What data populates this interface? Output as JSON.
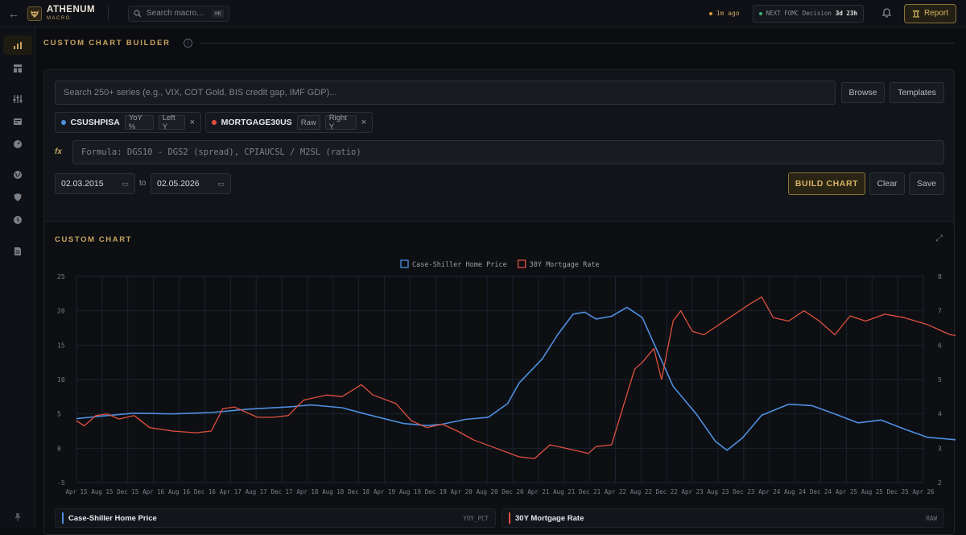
{
  "topbar": {
    "back": "←",
    "logo_name": "ATHENUM",
    "logo_sub": "MACRO",
    "search_placeholder": "Search macro...",
    "search_shortcut": "⌘K",
    "updated": "1m ago",
    "fomc_label": "NEXT FOMC Decision",
    "fomc_countdown": "3d 23h",
    "report_label": "Report"
  },
  "sidebar": {
    "items": [
      "chart-bar-icon",
      "layout-icon",
      "sliders-icon",
      "news-icon",
      "gauge-icon",
      "globe-icon",
      "shield-icon",
      "clock-icon",
      "document-icon",
      "pin-icon"
    ]
  },
  "builder": {
    "section_title": "CUSTOM CHART BUILDER",
    "info": "i",
    "search_placeholder": "Search 250+ series (e.g., VIX, COT Gold, BIS credit gap, IMF GDP)...",
    "browse_label": "Browse",
    "templates_label": "Templates",
    "chips": [
      {
        "name": "CSUSHPISA",
        "transform": "YoY %",
        "axis": "Left Y",
        "color": "#4f8fe0"
      },
      {
        "name": "MORTGAGE30US",
        "transform": "Raw",
        "axis": "Right Y",
        "color": "#e0503f"
      }
    ],
    "fx_label": "fx",
    "formula_placeholder": "Formula: DGS10 - DGS2 (spread), CPIAUCSL / M2SL (ratio)",
    "date_from": "02.03.2015",
    "date_to": "02.05.2026",
    "to_label": "to",
    "build_label": "BUILD CHART",
    "clear_label": "Clear",
    "save_label": "Save"
  },
  "chart_card": {
    "title": "CUSTOM CHART",
    "footer": [
      {
        "name": "Case-Shiller Home Price",
        "tag": "YOY_PCT",
        "color": "#4f8fe0"
      },
      {
        "name": "30Y Mortgage Rate",
        "tag": "RAW",
        "color": "#e0503f"
      }
    ]
  },
  "chart_data": {
    "type": "line",
    "legend_position": "top-center",
    "grid": true,
    "x_ticks": [
      "Apr 15",
      "Aug 15",
      "Dec 15",
      "Apr 16",
      "Aug 16",
      "Dec 16",
      "Apr 17",
      "Aug 17",
      "Dec 17",
      "Apr 18",
      "Aug 18",
      "Dec 18",
      "Apr 19",
      "Aug 19",
      "Dec 19",
      "Apr 20",
      "Aug 20",
      "Dec 20",
      "Apr 21",
      "Aug 21",
      "Dec 21",
      "Apr 22",
      "Aug 22",
      "Dec 22",
      "Apr 23",
      "Aug 23",
      "Dec 23",
      "Apr 24",
      "Aug 24",
      "Dec 24",
      "Apr 25",
      "Aug 25",
      "Dec 25",
      "Apr 26"
    ],
    "y_left": {
      "min": -5,
      "max": 25,
      "ticks": [
        -5,
        0,
        5,
        10,
        15,
        20,
        25
      ]
    },
    "y_right": {
      "min": 2,
      "max": 8,
      "ticks": [
        2,
        3,
        4,
        5,
        6,
        7,
        8
      ]
    },
    "series": [
      {
        "name": "Case-Shiller Home Price",
        "axis": "left",
        "color": "#4f8fe0",
        "points": [
          [
            2015.25,
            4.3
          ],
          [
            2015.6,
            4.7
          ],
          [
            2016.0,
            5.1
          ],
          [
            2016.5,
            5.0
          ],
          [
            2017.0,
            5.2
          ],
          [
            2017.5,
            5.7
          ],
          [
            2018.0,
            6.0
          ],
          [
            2018.3,
            6.3
          ],
          [
            2018.7,
            5.9
          ],
          [
            2019.0,
            5.0
          ],
          [
            2019.5,
            3.6
          ],
          [
            2019.8,
            3.3
          ],
          [
            2020.0,
            3.5
          ],
          [
            2020.3,
            4.2
          ],
          [
            2020.6,
            4.5
          ],
          [
            2020.85,
            6.5
          ],
          [
            2021.0,
            9.5
          ],
          [
            2021.3,
            13.0
          ],
          [
            2021.5,
            16.5
          ],
          [
            2021.7,
            19.5
          ],
          [
            2021.85,
            19.8
          ],
          [
            2022.0,
            18.8
          ],
          [
            2022.2,
            19.2
          ],
          [
            2022.4,
            20.5
          ],
          [
            2022.6,
            19.0
          ],
          [
            2022.8,
            14.0
          ],
          [
            2023.0,
            9.0
          ],
          [
            2023.3,
            5.0
          ],
          [
            2023.55,
            1.0
          ],
          [
            2023.7,
            -0.3
          ],
          [
            2023.9,
            1.5
          ],
          [
            2024.15,
            4.8
          ],
          [
            2024.5,
            6.4
          ],
          [
            2024.8,
            6.2
          ],
          [
            2025.1,
            5.0
          ],
          [
            2025.4,
            3.7
          ],
          [
            2025.7,
            4.1
          ],
          [
            2026.0,
            2.8
          ],
          [
            2026.3,
            1.6
          ],
          [
            2026.6,
            1.3
          ],
          [
            2026.9,
            1.0
          ],
          [
            2027.15,
            0.6
          ]
        ]
      },
      {
        "name": "30Y Mortgage Rate",
        "axis": "right",
        "color": "#e0503f",
        "points": [
          [
            2015.25,
            3.8
          ],
          [
            2015.35,
            3.65
          ],
          [
            2015.5,
            3.95
          ],
          [
            2015.65,
            4.0
          ],
          [
            2015.8,
            3.85
          ],
          [
            2016.0,
            3.95
          ],
          [
            2016.2,
            3.6
          ],
          [
            2016.5,
            3.5
          ],
          [
            2016.8,
            3.45
          ],
          [
            2017.0,
            3.5
          ],
          [
            2017.15,
            4.15
          ],
          [
            2017.3,
            4.2
          ],
          [
            2017.6,
            3.9
          ],
          [
            2017.8,
            3.9
          ],
          [
            2018.0,
            3.95
          ],
          [
            2018.2,
            4.4
          ],
          [
            2018.5,
            4.55
          ],
          [
            2018.7,
            4.5
          ],
          [
            2018.95,
            4.85
          ],
          [
            2019.1,
            4.55
          ],
          [
            2019.4,
            4.3
          ],
          [
            2019.6,
            3.8
          ],
          [
            2019.8,
            3.6
          ],
          [
            2020.0,
            3.7
          ],
          [
            2020.2,
            3.5
          ],
          [
            2020.4,
            3.25
          ],
          [
            2020.7,
            3.0
          ],
          [
            2021.0,
            2.75
          ],
          [
            2021.2,
            2.7
          ],
          [
            2021.4,
            3.1
          ],
          [
            2021.6,
            3.0
          ],
          [
            2021.9,
            2.85
          ],
          [
            2022.0,
            3.05
          ],
          [
            2022.2,
            3.1
          ],
          [
            2022.35,
            4.2
          ],
          [
            2022.5,
            5.3
          ],
          [
            2022.6,
            5.5
          ],
          [
            2022.75,
            5.9
          ],
          [
            2022.85,
            5.0
          ],
          [
            2023.0,
            6.7
          ],
          [
            2023.1,
            7.0
          ],
          [
            2023.25,
            6.4
          ],
          [
            2023.4,
            6.3
          ],
          [
            2023.6,
            6.6
          ],
          [
            2023.8,
            6.9
          ],
          [
            2024.0,
            7.2
          ],
          [
            2024.15,
            7.4
          ],
          [
            2024.3,
            6.8
          ],
          [
            2024.5,
            6.7
          ],
          [
            2024.7,
            7.0
          ],
          [
            2024.9,
            6.7
          ],
          [
            2025.1,
            6.3
          ],
          [
            2025.3,
            6.85
          ],
          [
            2025.5,
            6.7
          ],
          [
            2025.75,
            6.9
          ],
          [
            2026.0,
            6.8
          ],
          [
            2026.3,
            6.6
          ],
          [
            2026.6,
            6.3
          ],
          [
            2026.8,
            6.25
          ],
          [
            2027.0,
            6.2
          ],
          [
            2027.15,
            6.5
          ],
          [
            2027.3,
            6.3
          ]
        ]
      }
    ]
  }
}
